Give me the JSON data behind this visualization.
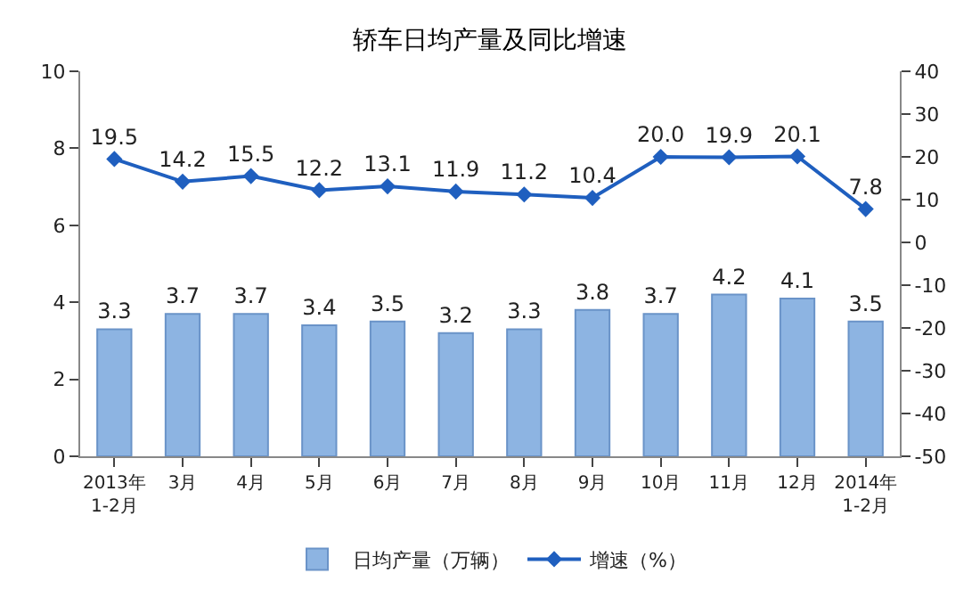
{
  "chart_data": {
    "type": "bar",
    "title": "轿车日均产量及同比增速",
    "categories": [
      "2013年\n1-2月",
      "3月",
      "4月",
      "5月",
      "6月",
      "7月",
      "8月",
      "9月",
      "10月",
      "11月",
      "12月",
      "2014年\n1-2月"
    ],
    "series": [
      {
        "name": "日均产量（万辆）",
        "color": "#8db4e2",
        "values": [
          3.3,
          3.7,
          3.7,
          3.4,
          3.5,
          3.2,
          3.3,
          3.8,
          3.7,
          4.2,
          4.1,
          3.5
        ],
        "value_labels": [
          "3.3",
          "3.7",
          "3.7",
          "3.4",
          "3.5",
          "3.2",
          "3.3",
          "3.8",
          "3.7",
          "4.2",
          "4.1",
          "3.5"
        ]
      },
      {
        "name": "增速（%）",
        "type": "line",
        "axis": "y2",
        "color": "#1f5fbf",
        "marker": "diamond",
        "values": [
          19.5,
          14.2,
          15.5,
          12.2,
          13.1,
          11.9,
          11.2,
          10.4,
          20.0,
          19.9,
          20.1,
          7.8
        ],
        "value_labels": [
          "19.5",
          "14.2",
          "15.5",
          "12.2",
          "13.1",
          "11.9",
          "11.2",
          "10.4",
          "20.0",
          "19.9",
          "20.1",
          "7.8"
        ]
      }
    ],
    "ylim": [
      0,
      10
    ],
    "yticks": [
      0,
      2,
      4,
      6,
      8,
      10
    ],
    "y2lim": [
      -50,
      40
    ],
    "y2ticks": [
      -50,
      -40,
      -30,
      -20,
      -10,
      0,
      10,
      20,
      30,
      40
    ],
    "legend": "bottom"
  }
}
